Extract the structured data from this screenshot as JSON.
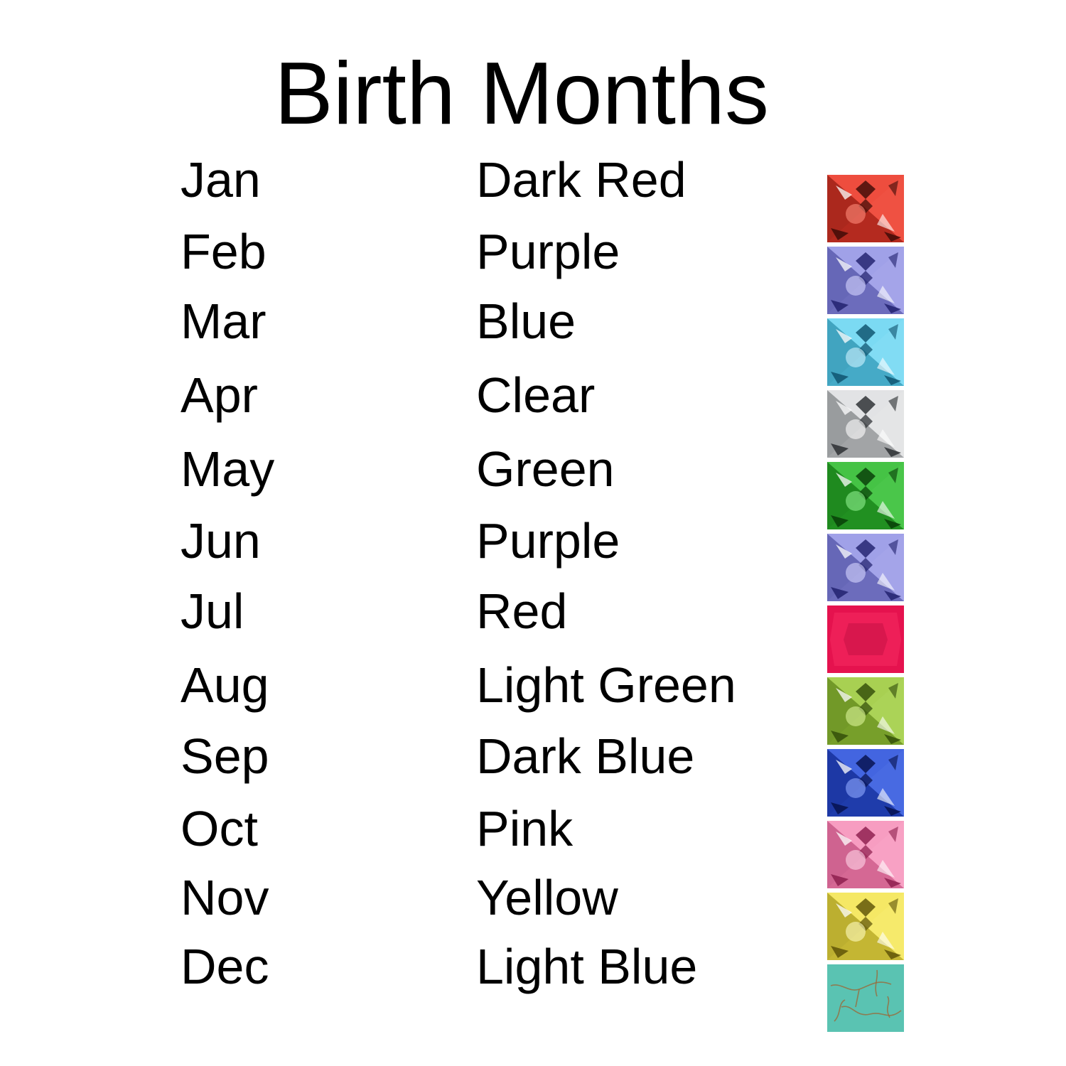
{
  "title": "Birth Months",
  "rows": [
    {
      "month": "Jan",
      "color": "Dark Red",
      "gem": {
        "base": "#e8392a",
        "light": "#ff8a7a",
        "dark": "#3a0a06",
        "style": "faceted"
      }
    },
    {
      "month": "Feb",
      "color": "Purple",
      "gem": {
        "base": "#8e8fe0",
        "light": "#d6d6ff",
        "dark": "#1e1e6a",
        "style": "faceted"
      }
    },
    {
      "month": "Mar",
      "color": "Blue",
      "gem": {
        "base": "#5fd2ef",
        "light": "#cff4ff",
        "dark": "#0b4f6a",
        "style": "faceted"
      }
    },
    {
      "month": "Apr",
      "color": "Clear",
      "gem": {
        "base": "#d8dadc",
        "light": "#ffffff",
        "dark": "#25282c",
        "style": "faceted"
      }
    },
    {
      "month": "May",
      "color": "Green",
      "gem": {
        "base": "#2db52d",
        "light": "#8ff08f",
        "dark": "#063a06",
        "style": "faceted"
      }
    },
    {
      "month": "Jun",
      "color": "Purple",
      "gem": {
        "base": "#8e8fe0",
        "light": "#d6d6ff",
        "dark": "#1e1e6a",
        "style": "faceted"
      }
    },
    {
      "month": "Jul",
      "color": "Red",
      "gem": {
        "base": "#e5124e",
        "light": "#ff3a6c",
        "dark": "#b00a3a",
        "style": "smooth"
      }
    },
    {
      "month": "Aug",
      "color": "Light Green",
      "gem": {
        "base": "#97c43a",
        "light": "#dcf59a",
        "dark": "#2f4a08",
        "style": "faceted"
      }
    },
    {
      "month": "Sep",
      "color": "Dark Blue",
      "gem": {
        "base": "#2a4fd6",
        "light": "#8fa8ff",
        "dark": "#050f4a",
        "style": "faceted"
      }
    },
    {
      "month": "Oct",
      "color": "Pink",
      "gem": {
        "base": "#f58ab5",
        "light": "#ffd6e8",
        "dark": "#8a1a4a",
        "style": "faceted"
      }
    },
    {
      "month": "Nov",
      "color": "Yellow",
      "gem": {
        "base": "#f2e247",
        "light": "#fffbc0",
        "dark": "#5a4f05",
        "style": "faceted"
      }
    },
    {
      "month": "Dec",
      "color": "Light Blue",
      "gem": {
        "base": "#5ac3b2",
        "light": "#8fdccf",
        "dark": "#9a6a3a",
        "style": "turquoise"
      }
    }
  ]
}
